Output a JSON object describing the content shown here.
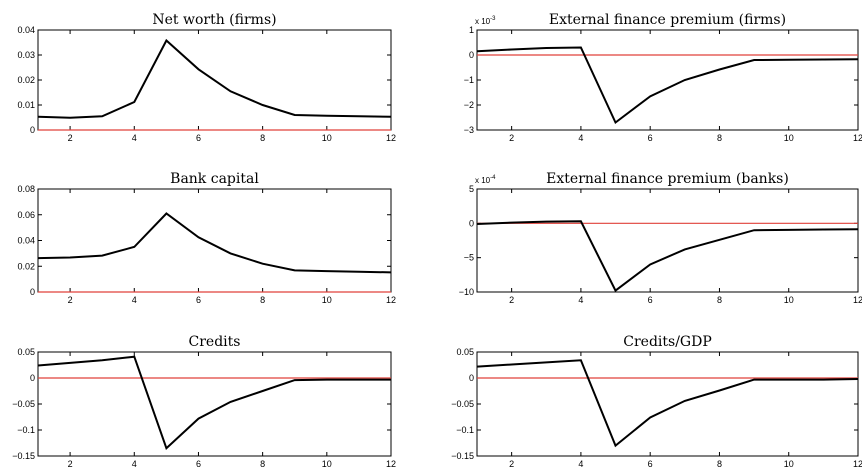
{
  "colors": {
    "series": "#000000",
    "baseline": "#e0403a",
    "frame": "#000000"
  },
  "chart_data": [
    {
      "type": "line",
      "title": "Net worth (firms)",
      "x": [
        1,
        2,
        3,
        4,
        5,
        6,
        7,
        8,
        9,
        10,
        11,
        12
      ],
      "series": [
        {
          "values": [
            0.0053,
            0.0049,
            0.0055,
            0.0112,
            0.0358,
            0.0243,
            0.0155,
            0.01,
            0.006,
            0.0057,
            0.0055,
            0.0053
          ]
        }
      ],
      "baseline": 0,
      "xlim": [
        1,
        12
      ],
      "ylim": [
        0,
        0.04
      ],
      "xticks": [
        2,
        4,
        6,
        8,
        10,
        12
      ],
      "yticks": [
        0,
        0.01,
        0.02,
        0.03,
        0.04
      ],
      "yticklabels": [
        "0",
        "0.01",
        "0.02",
        "0.03",
        "0.04"
      ],
      "xticklabels": [
        "2",
        "4",
        "6",
        "8",
        "10",
        "12"
      ],
      "multiplier": ""
    },
    {
      "type": "line",
      "title": "External finance premium (firms)",
      "x": [
        1,
        2,
        3,
        4,
        5,
        6,
        7,
        8,
        9,
        10,
        11,
        12
      ],
      "series": [
        {
          "values": [
            0.15,
            0.22,
            0.28,
            0.3,
            -2.7,
            -1.65,
            -1.0,
            -0.58,
            -0.2,
            -0.19,
            -0.18,
            -0.17
          ]
        }
      ],
      "baseline": 0,
      "xlim": [
        1,
        12
      ],
      "ylim": [
        -3,
        1
      ],
      "xticks": [
        2,
        4,
        6,
        8,
        10,
        12
      ],
      "yticks": [
        -3,
        -2,
        -1,
        0,
        1
      ],
      "yticklabels": [
        "−3",
        "−2",
        "−1",
        "0",
        "1"
      ],
      "xticklabels": [
        "2",
        "4",
        "6",
        "8",
        "10",
        "12"
      ],
      "multiplier": "x 10",
      "multiplier_exp": "-3"
    },
    {
      "type": "line",
      "title": "Bank capital",
      "x": [
        1,
        2,
        3,
        4,
        5,
        6,
        7,
        8,
        9,
        10,
        11,
        12
      ],
      "series": [
        {
          "values": [
            0.0263,
            0.0268,
            0.0283,
            0.035,
            0.061,
            0.0425,
            0.03,
            0.022,
            0.0168,
            0.0162,
            0.0158,
            0.0152
          ]
        }
      ],
      "baseline": 0,
      "xlim": [
        1,
        12
      ],
      "ylim": [
        0,
        0.08
      ],
      "xticks": [
        2,
        4,
        6,
        8,
        10,
        12
      ],
      "yticks": [
        0,
        0.02,
        0.04,
        0.06,
        0.08
      ],
      "yticklabels": [
        "0",
        "0.02",
        "0.04",
        "0.06",
        "0.08"
      ],
      "xticklabels": [
        "2",
        "4",
        "6",
        "8",
        "10",
        "12"
      ],
      "multiplier": ""
    },
    {
      "type": "line",
      "title": "External finance premium (banks)",
      "x": [
        1,
        2,
        3,
        4,
        5,
        6,
        7,
        8,
        9,
        10,
        11,
        12
      ],
      "series": [
        {
          "values": [
            -0.1,
            0.1,
            0.25,
            0.3,
            -9.8,
            -6.0,
            -3.8,
            -2.4,
            -1.0,
            -0.95,
            -0.9,
            -0.85
          ]
        }
      ],
      "baseline": 0,
      "xlim": [
        1,
        12
      ],
      "ylim": [
        -10,
        5
      ],
      "xticks": [
        2,
        4,
        6,
        8,
        10,
        12
      ],
      "yticks": [
        -10,
        -5,
        0,
        5
      ],
      "yticklabels": [
        "−10",
        "−5",
        "0",
        "5"
      ],
      "xticklabels": [
        "2",
        "4",
        "6",
        "8",
        "10",
        "12"
      ],
      "multiplier": "x 10",
      "multiplier_exp": "-4"
    },
    {
      "type": "line",
      "title": "Credits",
      "x": [
        1,
        2,
        3,
        4,
        5,
        6,
        7,
        8,
        9,
        10,
        11,
        12
      ],
      "series": [
        {
          "values": [
            0.024,
            0.029,
            0.034,
            0.041,
            -0.135,
            -0.078,
            -0.046,
            -0.025,
            -0.004,
            -0.003,
            -0.003,
            -0.003
          ]
        }
      ],
      "baseline": 0,
      "xlim": [
        1,
        12
      ],
      "ylim": [
        -0.15,
        0.05
      ],
      "xticks": [
        2,
        4,
        6,
        8,
        10,
        12
      ],
      "yticks": [
        -0.15,
        -0.1,
        -0.05,
        0,
        0.05
      ],
      "yticklabels": [
        "−0.15",
        "−0.1",
        "−0.05",
        "0",
        "0.05"
      ],
      "xticklabels": [
        "2",
        "4",
        "6",
        "8",
        "10",
        "12"
      ],
      "multiplier": ""
    },
    {
      "type": "line",
      "title": "Credits/GDP",
      "x": [
        1,
        2,
        3,
        4,
        5,
        6,
        7,
        8,
        9,
        10,
        11,
        12
      ],
      "series": [
        {
          "values": [
            0.022,
            0.026,
            0.03,
            0.034,
            -0.13,
            -0.076,
            -0.044,
            -0.024,
            -0.003,
            -0.003,
            -0.003,
            -0.002
          ]
        }
      ],
      "baseline": 0,
      "xlim": [
        1,
        12
      ],
      "ylim": [
        -0.15,
        0.05
      ],
      "xticks": [
        2,
        4,
        6,
        8,
        10,
        12
      ],
      "yticks": [
        -0.15,
        -0.1,
        -0.05,
        0,
        0.05
      ],
      "yticklabels": [
        "−0.15",
        "−0.1",
        "−0.05",
        "0",
        "0.05"
      ],
      "xticklabels": [
        "2",
        "4",
        "6",
        "8",
        "10",
        "12"
      ],
      "multiplier": ""
    }
  ]
}
